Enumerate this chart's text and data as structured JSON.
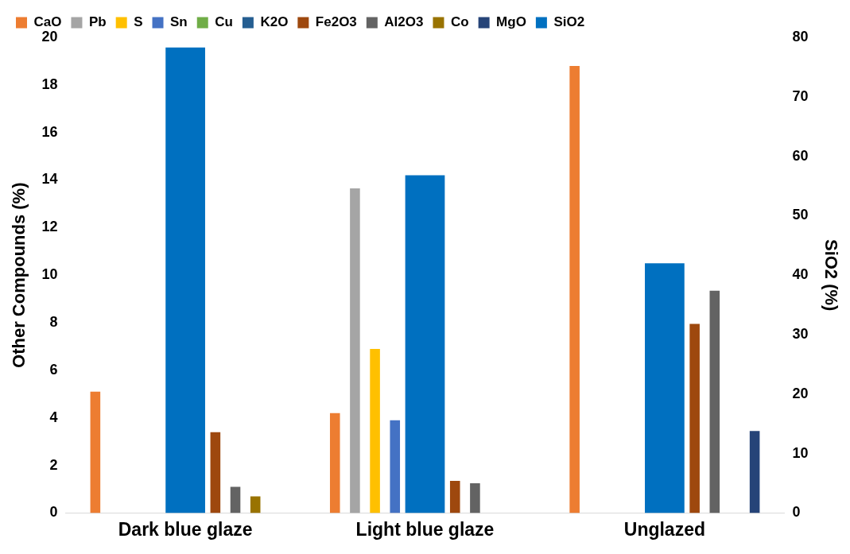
{
  "chart_data": {
    "type": "bar",
    "categories": [
      "Dark blue glaze",
      "Light blue glaze",
      "Unglazed"
    ],
    "ylabel": "Other Compounds (%)",
    "y2label": "SiO2 (%)",
    "ylim": [
      0,
      20
    ],
    "yticks": [
      0,
      2,
      4,
      6,
      8,
      10,
      12,
      14,
      16,
      18,
      20
    ],
    "y2lim": [
      0,
      80
    ],
    "y2ticks": [
      0,
      10,
      20,
      30,
      40,
      50,
      60,
      70,
      80
    ],
    "grid": false,
    "legend": "top",
    "series": [
      {
        "name": "CaO",
        "color": "#ed7d31",
        "values": [
          5.1,
          4.2,
          18.8
        ]
      },
      {
        "name": "Pb",
        "color": "#a5a5a5",
        "values": [
          null,
          13.65,
          null
        ]
      },
      {
        "name": "S",
        "color": "#ffc000",
        "values": [
          null,
          6.9,
          null
        ]
      },
      {
        "name": "Sn",
        "color": "#4472c4",
        "values": [
          null,
          3.9,
          null
        ]
      },
      {
        "name": "Cu",
        "color": "#70ad47",
        "values": [
          null,
          null,
          null
        ]
      },
      {
        "name": "K2O",
        "color": "#255e91",
        "values": [
          null,
          null,
          null
        ]
      },
      {
        "name": "Fe2O3",
        "color": "#9e480e",
        "values": [
          3.4,
          1.35,
          7.95
        ]
      },
      {
        "name": "Al2O3",
        "color": "#636363",
        "values": [
          1.1,
          1.25,
          9.35
        ]
      },
      {
        "name": "Co",
        "color": "#997300",
        "values": [
          0.7,
          null,
          null
        ]
      },
      {
        "name": "MgO",
        "color": "#264478",
        "values": [
          null,
          null,
          3.45
        ]
      },
      {
        "name": "SiO2",
        "color": "#0070c0",
        "axis": "y2",
        "values": [
          78.3,
          56.8,
          42
        ]
      }
    ]
  }
}
